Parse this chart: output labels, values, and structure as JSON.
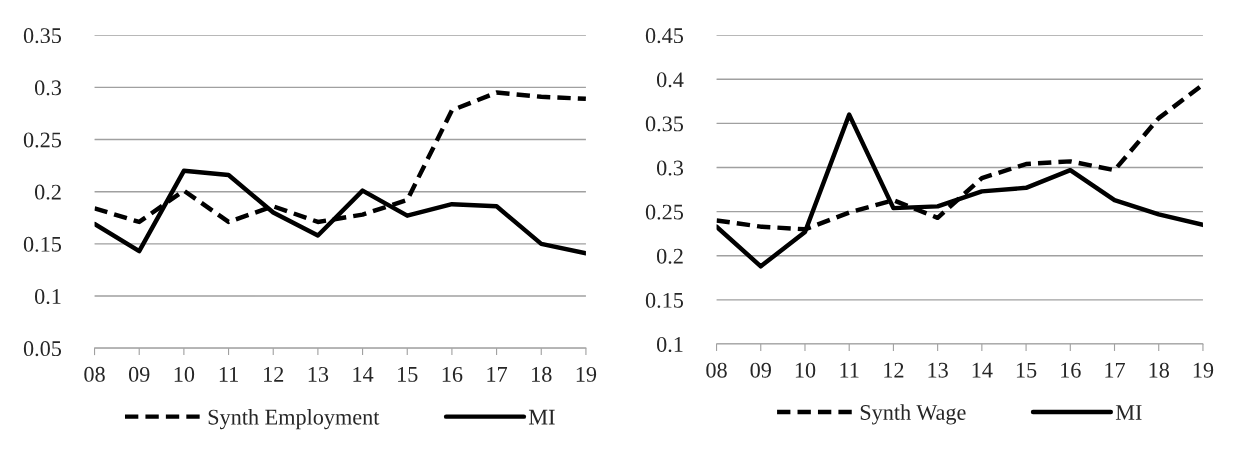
{
  "chart_data": [
    {
      "type": "line",
      "categories": [
        "08",
        "09",
        "10",
        "11",
        "12",
        "13",
        "14",
        "15",
        "16",
        "17",
        "18",
        "19"
      ],
      "series": [
        {
          "name": "Synth Employment",
          "color": "#000000",
          "line_style": "dashed",
          "values": [
            0.184,
            0.171,
            0.201,
            0.171,
            0.186,
            0.171,
            0.178,
            0.192,
            0.278,
            0.295,
            0.291,
            0.289
          ]
        },
        {
          "name": "MI",
          "color": "#000000",
          "line_style": "solid",
          "values": [
            0.169,
            0.143,
            0.22,
            0.216,
            0.18,
            0.158,
            0.201,
            0.177,
            0.188,
            0.186,
            0.15,
            0.141
          ]
        }
      ],
      "ylim": [
        0.05,
        0.35
      ],
      "yticks": [
        0.05,
        0.1,
        0.15,
        0.2,
        0.25,
        0.3,
        0.35
      ],
      "grid": "y",
      "legend": "bottom",
      "marker": "none"
    },
    {
      "type": "line",
      "categories": [
        "08",
        "09",
        "10",
        "11",
        "12",
        "13",
        "14",
        "15",
        "16",
        "17",
        "18",
        "19"
      ],
      "series": [
        {
          "name": "Synth Wage",
          "color": "#000000",
          "line_style": "dashed",
          "values": [
            0.24,
            0.233,
            0.23,
            0.249,
            0.263,
            0.243,
            0.288,
            0.304,
            0.307,
            0.297,
            0.356,
            0.394
          ]
        },
        {
          "name": "MI",
          "color": "#000000",
          "line_style": "solid",
          "values": [
            0.233,
            0.188,
            0.227,
            0.36,
            0.254,
            0.256,
            0.273,
            0.277,
            0.297,
            0.263,
            0.247,
            0.235
          ]
        }
      ],
      "ylim": [
        0.1,
        0.45
      ],
      "yticks": [
        0.1,
        0.15,
        0.2,
        0.25,
        0.3,
        0.35,
        0.4,
        0.45
      ],
      "grid": "y",
      "legend": "bottom",
      "marker": "none"
    }
  ]
}
